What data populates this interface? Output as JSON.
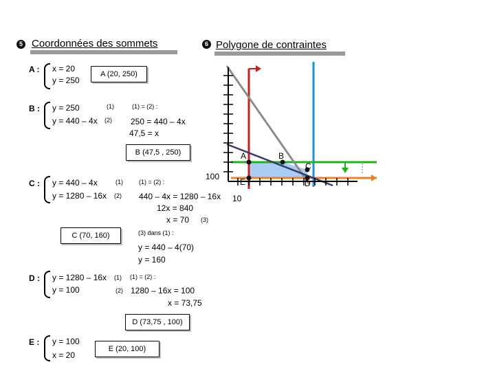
{
  "sections": {
    "coords_title": "Coordonnées des sommets",
    "polygon_title": "Polygone de contraintes",
    "bullet_left": "5",
    "bullet_right": "6"
  },
  "vertices": {
    "A": {
      "name": "A :",
      "line1": "x  =  20",
      "line2": "y  =  250",
      "result": "A (20, 250)"
    },
    "B": {
      "name": "B :",
      "line1": "y  =  250",
      "tag1": "(1)",
      "line2": "y  =  440 – 4x",
      "tag2": "(2)",
      "eq_label": "(1) = (2) :",
      "step1": "250  =  440 – 4x",
      "step2": "47,5  =  x",
      "result": "B (47,5 , 250)"
    },
    "C": {
      "name": "C :",
      "line1": "y  =  440 – 4x",
      "tag1": "(1)",
      "line2": "y  =  1280 – 16x",
      "tag2": "(2)",
      "eq_label": "(1) = (2) :",
      "step1": "440 – 4x  =  1280 – 16x",
      "step2": "12x  =  840",
      "step3": "x  =  70",
      "tag3": "(3)",
      "sub_label": "(3) dans (1) :",
      "step4": "y  =  440 – 4(70)",
      "step5": "y  =  160",
      "result": "C (70, 160)"
    },
    "D": {
      "name": "D :",
      "line1": "y  =  1280 – 16x",
      "tag1": "(1)",
      "line2": "y  =  100",
      "tag2": "(2)",
      "eq_label": "(1) = (2) :",
      "step1": "1280 – 16x  =  100",
      "step2": "x  =  73,75",
      "result": "D (73,75 , 100)"
    },
    "E": {
      "name": "E :",
      "line1": "y  =  100",
      "line2": "x  =  20",
      "result": "E (20, 100)"
    }
  },
  "graph": {
    "y_tick_label": "100",
    "x_tick_label": "10",
    "points": {
      "A": "A",
      "B": "B",
      "C": "C",
      "D": "D",
      "E": "E"
    },
    "colors": {
      "green": "#22b022",
      "blue": "#1e90d8",
      "red": "#c81e1e",
      "orange": "#ee7f2a",
      "gray": "#8c8c8c",
      "navy": "#3a3a6e",
      "fill": "#a9cdf2"
    }
  }
}
